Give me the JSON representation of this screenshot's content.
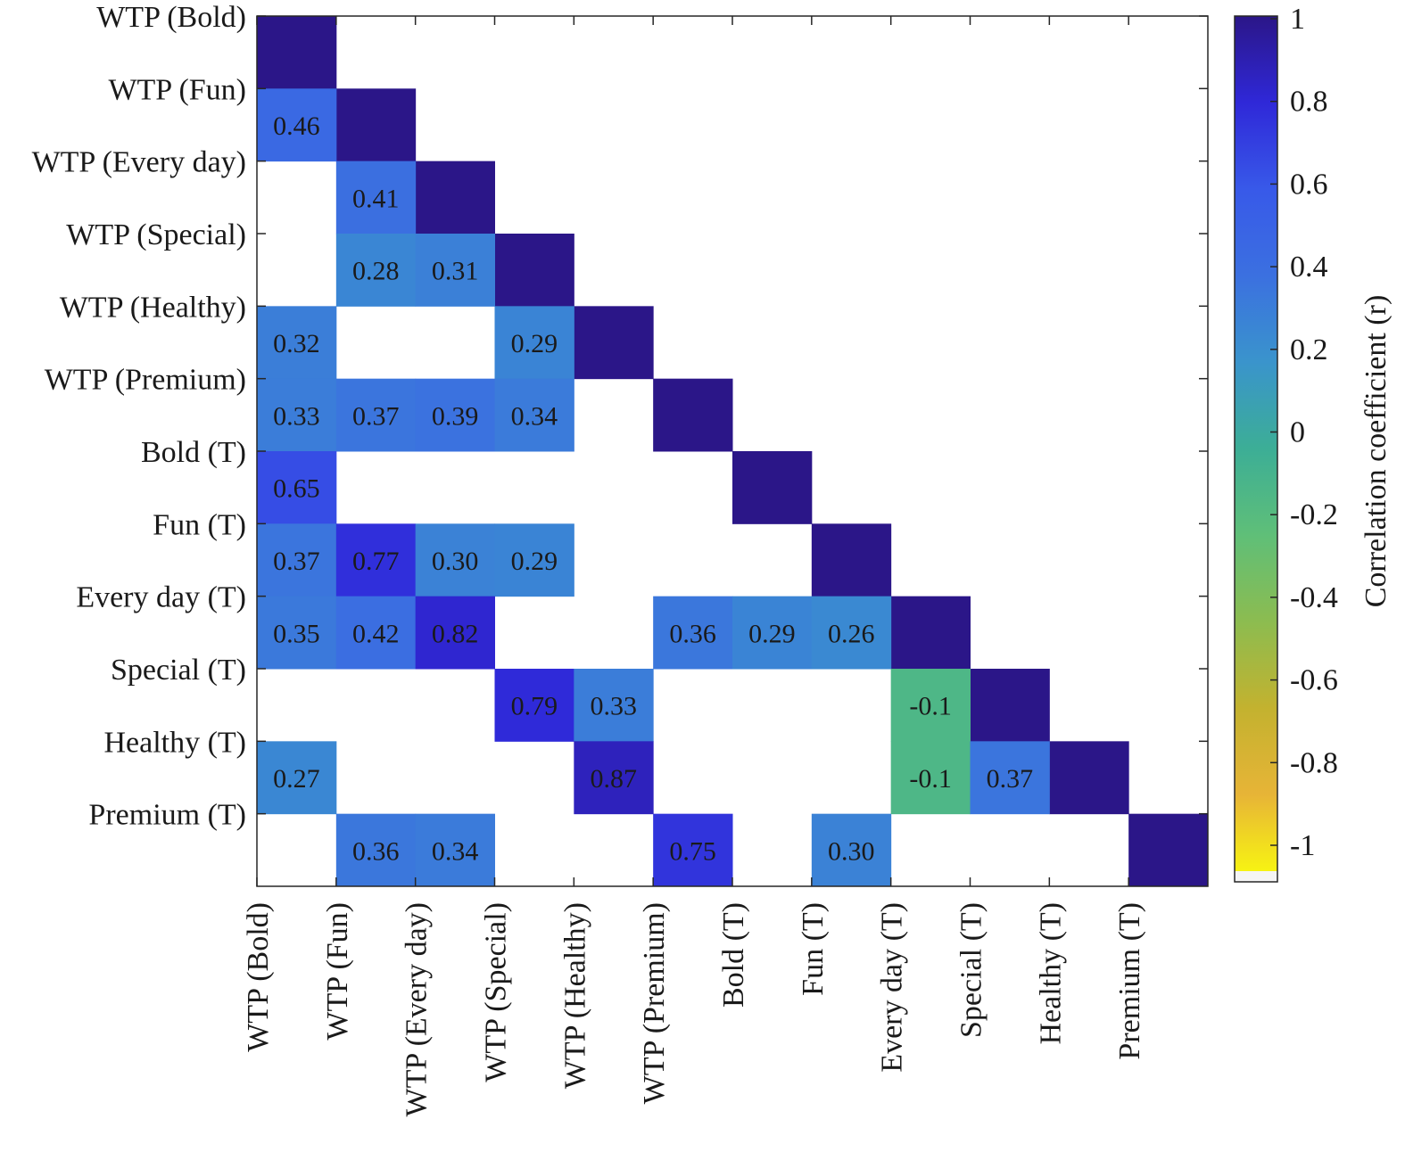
{
  "chart_data": {
    "type": "heatmap",
    "row_labels": [
      "WTP (Bold)",
      "WTP (Fun)",
      "WTP (Every day)",
      "WTP (Special)",
      "WTP (Healthy)",
      "WTP (Premium)",
      "Bold (T)",
      "Fun (T)",
      "Every day (T)",
      "Special (T)",
      "Healthy (T)",
      "Premium (T)"
    ],
    "col_labels": [
      "WTP (Bold)",
      "WTP (Fun)",
      "WTP (Every day)",
      "WTP (Special)",
      "WTP (Healthy)",
      "WTP (Premium)",
      "Bold (T)",
      "Fun (T)",
      "Every day (T)",
      "Special (T)",
      "Healthy (T)",
      "Premium (T)"
    ],
    "diagonal_value": 1,
    "cells": [
      {
        "row": 1,
        "col": 0,
        "value": 0.46,
        "label": "0.46"
      },
      {
        "row": 2,
        "col": 1,
        "value": 0.41,
        "label": "0.41"
      },
      {
        "row": 3,
        "col": 1,
        "value": 0.28,
        "label": "0.28"
      },
      {
        "row": 3,
        "col": 2,
        "value": 0.31,
        "label": "0.31"
      },
      {
        "row": 4,
        "col": 0,
        "value": 0.32,
        "label": "0.32"
      },
      {
        "row": 4,
        "col": 3,
        "value": 0.29,
        "label": "0.29"
      },
      {
        "row": 5,
        "col": 0,
        "value": 0.33,
        "label": "0.33"
      },
      {
        "row": 5,
        "col": 1,
        "value": 0.37,
        "label": "0.37"
      },
      {
        "row": 5,
        "col": 2,
        "value": 0.39,
        "label": "0.39"
      },
      {
        "row": 5,
        "col": 3,
        "value": 0.34,
        "label": "0.34"
      },
      {
        "row": 6,
        "col": 0,
        "value": 0.65,
        "label": "0.65"
      },
      {
        "row": 7,
        "col": 0,
        "value": 0.37,
        "label": "0.37"
      },
      {
        "row": 7,
        "col": 1,
        "value": 0.77,
        "label": "0.77"
      },
      {
        "row": 7,
        "col": 2,
        "value": 0.3,
        "label": "0.30"
      },
      {
        "row": 7,
        "col": 3,
        "value": 0.29,
        "label": "0.29"
      },
      {
        "row": 8,
        "col": 0,
        "value": 0.35,
        "label": "0.35"
      },
      {
        "row": 8,
        "col": 1,
        "value": 0.42,
        "label": "0.42"
      },
      {
        "row": 8,
        "col": 2,
        "value": 0.82,
        "label": "0.82"
      },
      {
        "row": 8,
        "col": 5,
        "value": 0.36,
        "label": "0.36"
      },
      {
        "row": 8,
        "col": 6,
        "value": 0.29,
        "label": "0.29"
      },
      {
        "row": 8,
        "col": 7,
        "value": 0.26,
        "label": "0.26"
      },
      {
        "row": 9,
        "col": 3,
        "value": 0.79,
        "label": "0.79"
      },
      {
        "row": 9,
        "col": 4,
        "value": 0.33,
        "label": "0.33"
      },
      {
        "row": 9,
        "col": 8,
        "value": -0.1,
        "label": "-0.1"
      },
      {
        "row": 10,
        "col": 0,
        "value": 0.27,
        "label": "0.27"
      },
      {
        "row": 10,
        "col": 4,
        "value": 0.87,
        "label": "0.87"
      },
      {
        "row": 10,
        "col": 8,
        "value": -0.1,
        "label": "-0.1"
      },
      {
        "row": 10,
        "col": 9,
        "value": 0.37,
        "label": "0.37"
      },
      {
        "row": 11,
        "col": 1,
        "value": 0.36,
        "label": "0.36"
      },
      {
        "row": 11,
        "col": 2,
        "value": 0.34,
        "label": "0.34"
      },
      {
        "row": 11,
        "col": 5,
        "value": 0.75,
        "label": "0.75"
      },
      {
        "row": 11,
        "col": 7,
        "value": 0.3,
        "label": "0.30"
      }
    ],
    "colorbar": {
      "label": "Correlation coefficient (r)",
      "range": [
        -1,
        1
      ],
      "ticks": [
        1,
        0.8,
        0.6,
        0.4,
        0.2,
        0,
        -0.2,
        -0.4,
        -0.6,
        -0.8,
        -1
      ],
      "tick_labels": [
        "1",
        "0.8",
        "0.6",
        "0.4",
        "0.2",
        "0",
        "-0.2",
        "-0.4",
        "-0.6",
        "-0.8",
        "-1"
      ],
      "colormap": "parula"
    },
    "title": "",
    "xlabel": "",
    "ylabel": ""
  }
}
